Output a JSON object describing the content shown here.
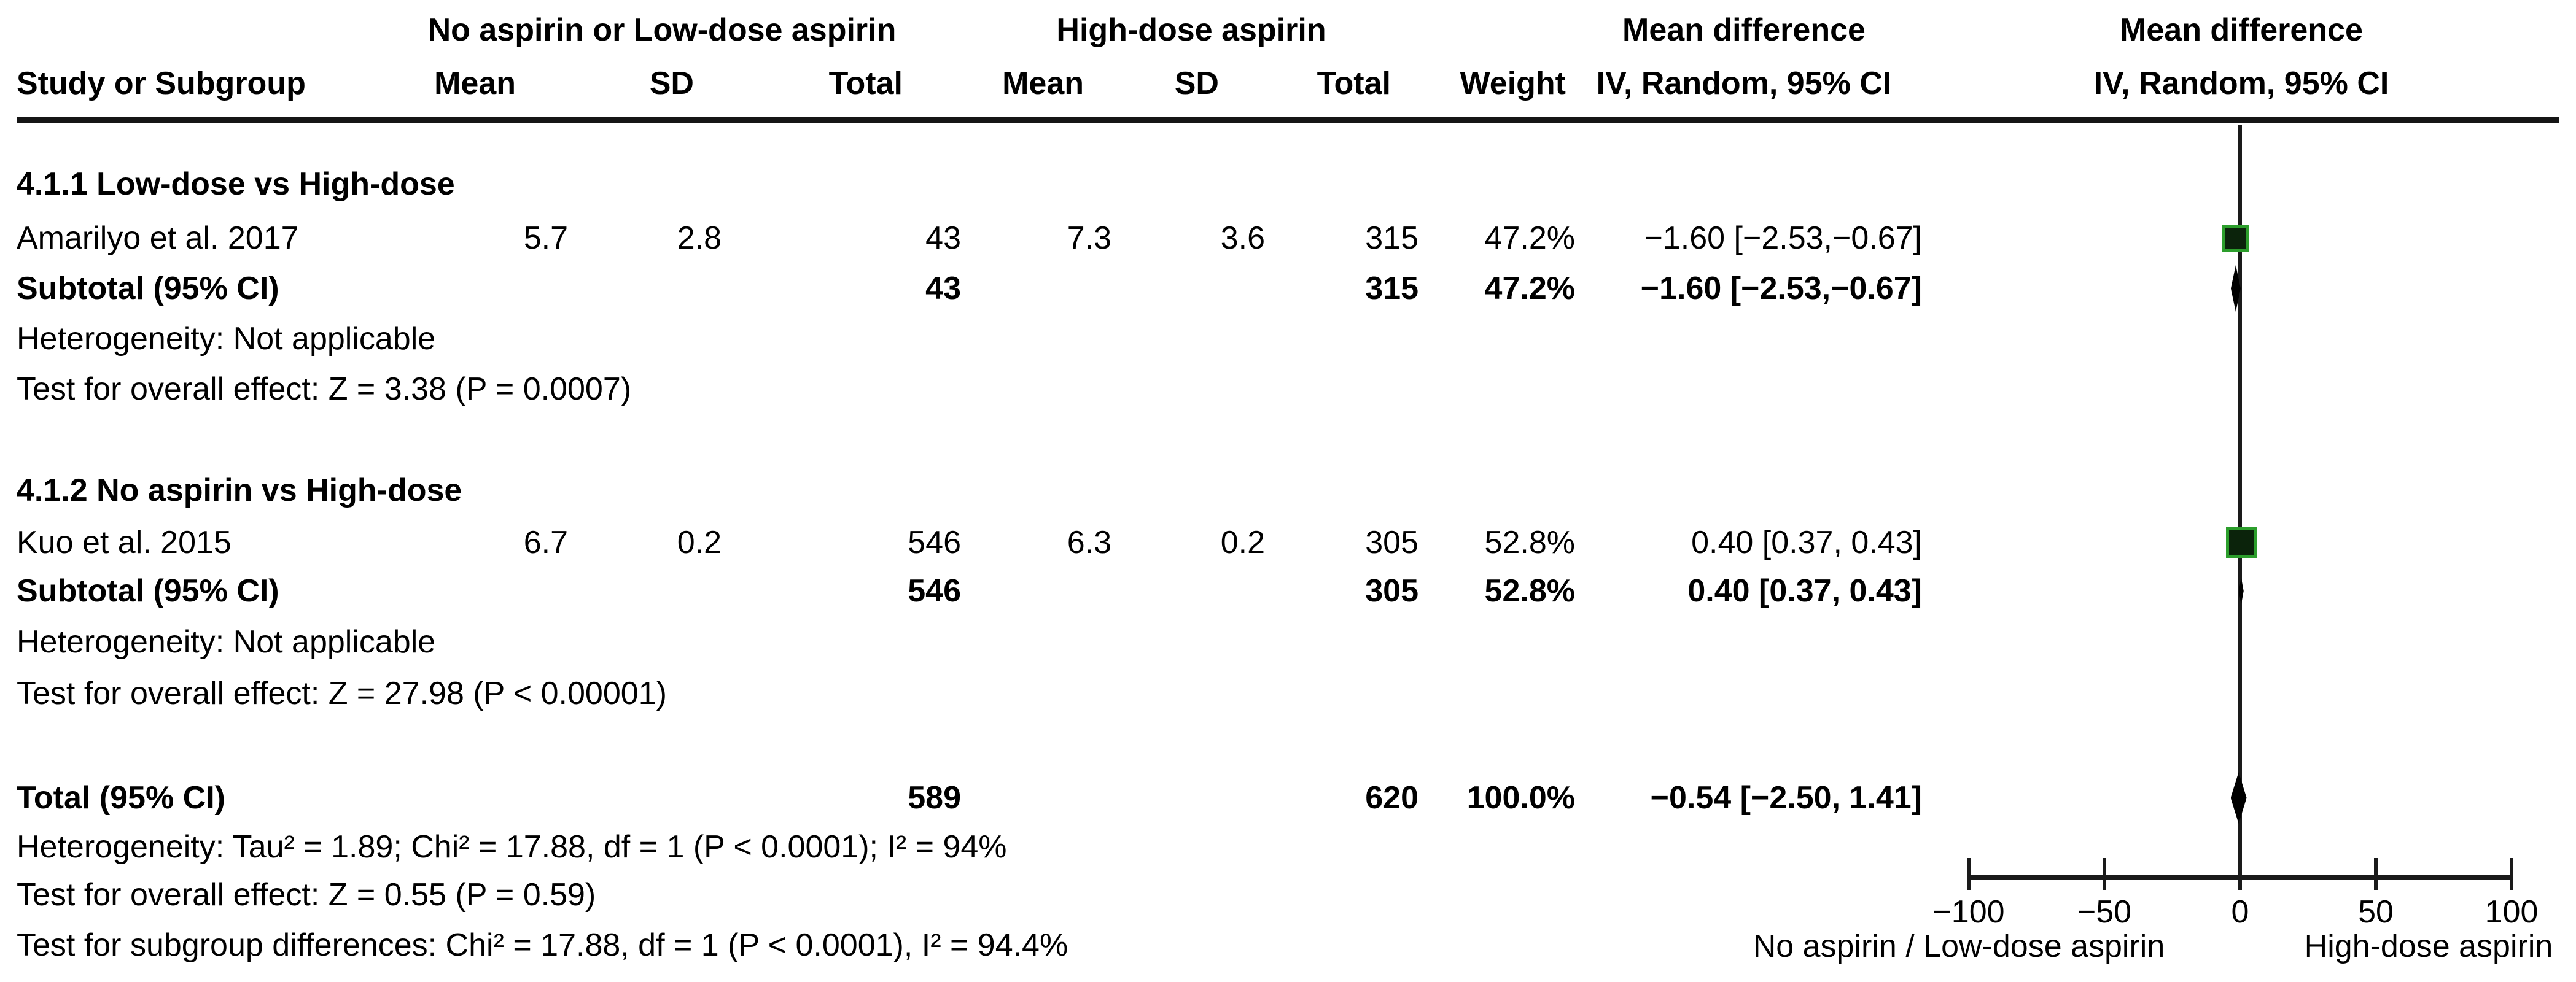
{
  "colors": {
    "marker_green_fill": "#0b230b",
    "marker_green_edge": "#2c9e2c",
    "diamond_fill": "#000000",
    "line": "#1a1a1a"
  },
  "table": {
    "headers": {
      "study": "Study or Subgroup",
      "group1": "No aspirin or Low-dose aspirin",
      "group2": "High-dose aspirin",
      "mean": "Mean",
      "sd": "SD",
      "total": "Total",
      "weight": "Weight",
      "mean_difference": "Mean difference",
      "iv_random": "IV, Random, 95% CI"
    },
    "sections": [
      {
        "heading": "4.1.1 Low-dose vs High-dose",
        "study": {
          "name": "Amarilyo et al. 2017",
          "mean1": "5.7",
          "sd1": "2.8",
          "total1": "43",
          "mean2": "7.3",
          "sd2": "3.6",
          "total2": "315",
          "weight": "47.2%",
          "ci": "−1.60 [−2.53,−0.67]"
        },
        "subtotal": {
          "label": "Subtotal (95% CI)",
          "total1": "43",
          "total2": "315",
          "weight": "47.2%",
          "ci": "−1.60 [−2.53,−0.67]"
        },
        "heterogeneity": "Heterogeneity: Not applicable",
        "overall_effect": "Test for overall effect: Z = 3.38 (P = 0.0007)"
      },
      {
        "heading": "4.1.2 No aspirin vs High-dose",
        "study": {
          "name": "Kuo et al. 2015",
          "mean1": "6.7",
          "sd1": "0.2",
          "total1": "546",
          "mean2": "6.3",
          "sd2": "0.2",
          "total2": "305",
          "weight": "52.8%",
          "ci": "0.40 [0.37, 0.43]"
        },
        "subtotal": {
          "label": "Subtotal (95% CI)",
          "total1": "546",
          "total2": "305",
          "weight": "52.8%",
          "ci": "0.40 [0.37, 0.43]"
        },
        "heterogeneity": "Heterogeneity: Not applicable",
        "overall_effect": "Test for overall effect: Z = 27.98 (P < 0.00001)"
      }
    ],
    "total": {
      "label": "Total (95% CI)",
      "total1": "589",
      "total2": "620",
      "weight": "100.0%",
      "ci": "−0.54 [−2.50, 1.41]",
      "heterogeneity": "Heterogeneity: Tau² = 1.89; Chi² = 17.88, df = 1 (P < 0.0001); I² = 94%",
      "overall_effect": "Test for overall effect: Z = 0.55 (P = 0.59)",
      "subgroup_differences": "Test for subgroup differences: Chi² = 17.88, df = 1 (P < 0.0001), I² = 94.4%"
    }
  },
  "chart_data": {
    "type": "forest",
    "effect_measure": "Mean difference, IV, Random, 95% CI",
    "x_axis": {
      "ticks": [
        -100,
        -50,
        0,
        50,
        100
      ],
      "range": [
        -100,
        100
      ],
      "left_label": "No aspirin / Low-dose aspirin",
      "right_label": "High-dose aspirin"
    },
    "markers": [
      {
        "row": "study-amarilyo",
        "shape": "square",
        "effect": -1.6,
        "ci": [
          -2.53,
          -0.67
        ],
        "weight_pct": 47.2
      },
      {
        "row": "subtotal-1",
        "shape": "diamond",
        "effect": -1.6,
        "ci": [
          -2.53,
          -0.67
        ]
      },
      {
        "row": "study-kuo",
        "shape": "square",
        "effect": 0.4,
        "ci": [
          0.37,
          0.43
        ],
        "weight_pct": 52.8
      },
      {
        "row": "subtotal-2",
        "shape": "diamond",
        "effect": 0.4,
        "ci": [
          0.37,
          0.43
        ]
      },
      {
        "row": "total",
        "shape": "diamond",
        "effect": -0.54,
        "ci": [
          -2.5,
          1.41
        ]
      }
    ]
  }
}
